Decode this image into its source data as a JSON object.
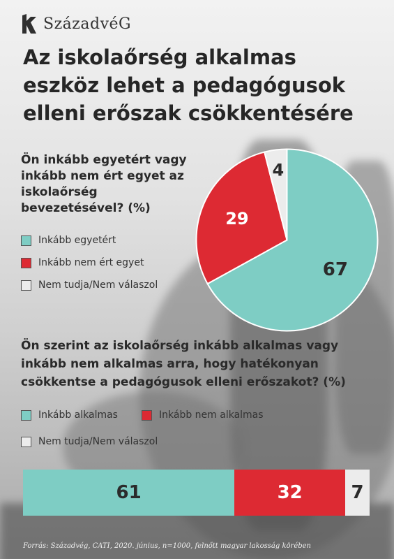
{
  "brand": {
    "name": "SzázadvéG"
  },
  "title": "Az iskolaőrség alkalmas eszköz lehet a pedagógusok elleni erőszak csökkentésére",
  "colors": {
    "teal": "#7ecdc4",
    "red": "#dd2a33",
    "light": "#ececec"
  },
  "source": "Forrás: Századvég, CATI, 2020. június, n=1000, felnőtt magyar lakosság körében",
  "chart_data": [
    {
      "type": "pie",
      "title": "Ön inkább egyetért vagy inkább nem ért egyet az iskolaőrség bevezetésével? (%)",
      "categories": [
        "Inkább egyetért",
        "Inkább nem ért egyet",
        "Nem tudja/Nem válaszol"
      ],
      "values": [
        67,
        29,
        4
      ],
      "labels": [
        "67",
        "29",
        "4"
      ],
      "colors": [
        "#7ecdc4",
        "#dd2a33",
        "#ececec"
      ]
    },
    {
      "type": "bar",
      "title": "Ön szerint az iskolaőrség inkább alkalmas vagy inkább nem alkalmas arra, hogy hatékonyan csökkentse a pedagógusok elleni erőszakot? (%)",
      "categories": [
        "Inkább alkalmas",
        "Inkább nem alkalmas",
        "Nem tudja/Nem válaszol"
      ],
      "values": [
        61,
        32,
        7
      ],
      "labels": [
        "61",
        "32",
        "7"
      ],
      "colors": [
        "#7ecdc4",
        "#dd2a33",
        "#ececec"
      ]
    }
  ]
}
